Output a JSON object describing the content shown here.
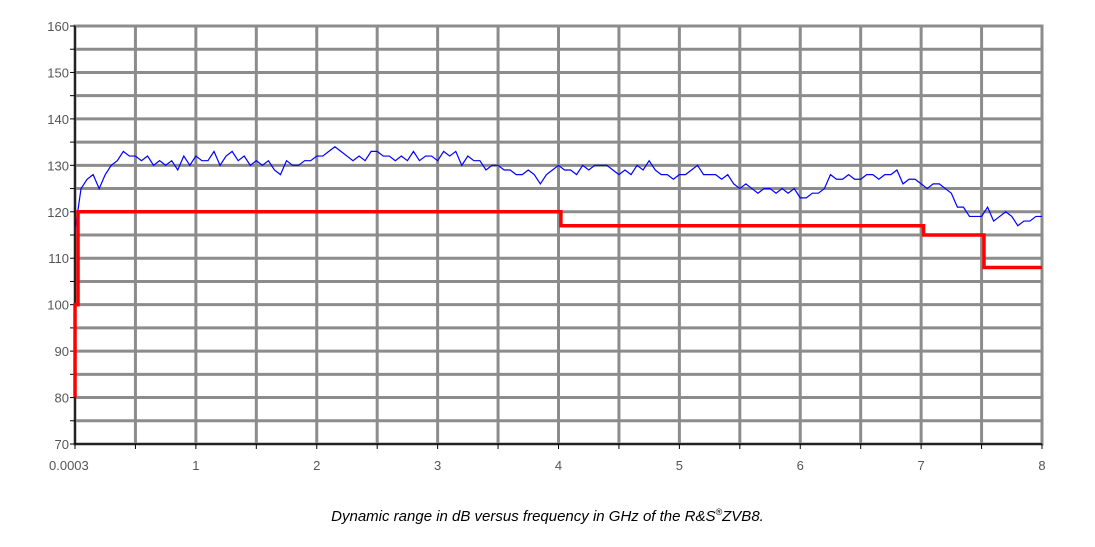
{
  "chart_data": {
    "type": "line",
    "x_ticks": [
      "0.0003",
      "1",
      "2",
      "3",
      "4",
      "5",
      "6",
      "7",
      "8"
    ],
    "y_ticks": [
      "70",
      "80",
      "90",
      "100",
      "110",
      "120",
      "130",
      "140",
      "150",
      "160"
    ],
    "xlim": [
      0,
      8
    ],
    "ylim": [
      70,
      160
    ],
    "grid": true,
    "legend": "none",
    "series": [
      {
        "color": "#0000ff",
        "x": [
          0.0003,
          0.05,
          0.1,
          0.15,
          0.2,
          0.25,
          0.3,
          0.35,
          0.4,
          0.45,
          0.5,
          0.55,
          0.6,
          0.65,
          0.7,
          0.75,
          0.8,
          0.85,
          0.9,
          0.95,
          1.0,
          1.05,
          1.1,
          1.15,
          1.2,
          1.25,
          1.3,
          1.35,
          1.4,
          1.45,
          1.5,
          1.55,
          1.6,
          1.65,
          1.7,
          1.75,
          1.8,
          1.85,
          1.9,
          1.95,
          2.0,
          2.05,
          2.1,
          2.15,
          2.2,
          2.25,
          2.3,
          2.35,
          2.4,
          2.45,
          2.5,
          2.55,
          2.6,
          2.65,
          2.7,
          2.75,
          2.8,
          2.85,
          2.9,
          2.95,
          3.0,
          3.05,
          3.1,
          3.15,
          3.2,
          3.25,
          3.3,
          3.35,
          3.4,
          3.45,
          3.5,
          3.55,
          3.6,
          3.65,
          3.7,
          3.75,
          3.8,
          3.85,
          3.9,
          3.95,
          4.0,
          4.05,
          4.1,
          4.15,
          4.2,
          4.25,
          4.3,
          4.35,
          4.4,
          4.45,
          4.5,
          4.55,
          4.6,
          4.65,
          4.7,
          4.75,
          4.8,
          4.85,
          4.9,
          4.95,
          5.0,
          5.05,
          5.1,
          5.15,
          5.2,
          5.25,
          5.3,
          5.35,
          5.4,
          5.45,
          5.5,
          5.55,
          5.6,
          5.65,
          5.7,
          5.75,
          5.8,
          5.85,
          5.9,
          5.95,
          6.0,
          6.05,
          6.1,
          6.15,
          6.2,
          6.25,
          6.3,
          6.35,
          6.4,
          6.45,
          6.5,
          6.55,
          6.6,
          6.65,
          6.7,
          6.75,
          6.8,
          6.85,
          6.9,
          6.95,
          7.0,
          7.05,
          7.1,
          7.15,
          7.2,
          7.25,
          7.3,
          7.35,
          7.4,
          7.45,
          7.5,
          7.55,
          7.6,
          7.65,
          7.7,
          7.75,
          7.8,
          7.85,
          7.9,
          7.95,
          8.0
        ],
        "values": [
          116,
          125,
          127,
          128,
          125,
          128,
          130,
          131,
          133,
          132,
          132,
          131,
          132,
          130,
          131,
          130,
          131,
          129,
          132,
          130,
          132,
          131,
          131,
          133,
          130,
          132,
          133,
          131,
          132,
          130,
          131,
          130,
          131,
          129,
          128,
          131,
          130,
          130,
          131,
          131,
          132,
          132,
          133,
          134,
          133,
          132,
          131,
          132,
          131,
          133,
          133,
          132,
          132,
          131,
          132,
          131,
          133,
          131,
          132,
          132,
          131,
          133,
          132,
          133,
          130,
          132,
          131,
          131,
          129,
          130,
          130,
          129,
          129,
          128,
          128,
          129,
          128,
          126,
          128,
          129,
          130,
          129,
          129,
          128,
          130,
          129,
          130,
          130,
          130,
          129,
          128,
          129,
          128,
          130,
          129,
          131,
          129,
          128,
          128,
          127,
          128,
          128,
          129,
          130,
          128,
          128,
          128,
          127,
          128,
          126,
          125,
          126,
          125,
          124,
          125,
          125,
          124,
          125,
          124,
          125,
          123,
          123,
          124,
          124,
          125,
          128,
          127,
          127,
          128,
          127,
          127,
          128,
          128,
          127,
          128,
          128,
          129,
          126,
          127,
          127,
          126,
          125,
          126,
          126,
          125,
          124,
          121,
          121,
          119,
          119,
          119,
          121,
          118,
          119,
          120,
          119,
          117,
          118,
          118,
          119,
          119
        ]
      },
      {
        "color": "#ff0000",
        "step": true,
        "x": [
          0.0003,
          0.0003,
          0.025,
          0.025,
          0.12,
          0.12,
          0.55,
          3.2,
          4.02,
          4.02,
          5.0,
          6.0,
          7.02,
          7.02,
          7.52,
          7.52,
          8.0
        ],
        "values": [
          80,
          100,
          100,
          120,
          120,
          120,
          120,
          120,
          120,
          117,
          117,
          117,
          117,
          115,
          115,
          108,
          108
        ]
      }
    ],
    "caption": {
      "before": "Dynamic range in dB versus frequency in GHz of the R&S",
      "sup": "®",
      "after": "ZVB8."
    }
  }
}
